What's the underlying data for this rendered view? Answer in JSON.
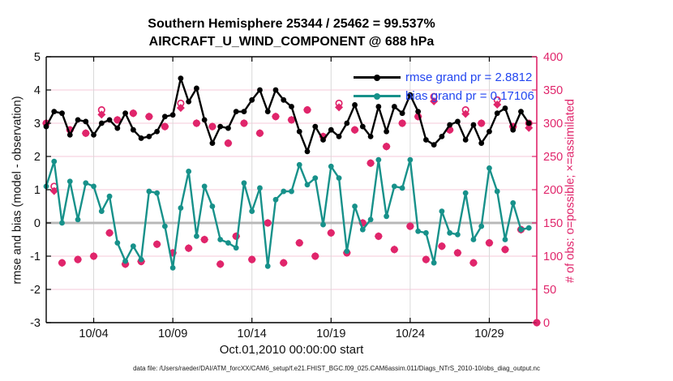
{
  "chart_data": {
    "type": "line",
    "title": "Southern Hemisphere 25344 / 25462 = 99.537%",
    "subtitle": "AIRCRAFT_U_WIND_COMPONENT @ 688 hPa",
    "xlabel": "Oct.01,2010 00:00:00 start",
    "ylabel_left": "rmse and bias (model - observation)",
    "ylabel_right": "# of obs: o=possible; ×=assimilated",
    "footer": "data file: /Users/raeder/DAI/ATM_forcXX/CAM6_setup/f.e21.FHIST_BGC.f09_025.CAM6assim.011/Diags_NTrS_2010-10/obs_diag_output.nc",
    "xlim_days": [
      0,
      31
    ],
    "xticks": [
      {
        "t": 3,
        "label": "10/04"
      },
      {
        "t": 8,
        "label": "10/09"
      },
      {
        "t": 13,
        "label": "10/14"
      },
      {
        "t": 18,
        "label": "10/19"
      },
      {
        "t": 23,
        "label": "10/24"
      },
      {
        "t": 28,
        "label": "10/29"
      }
    ],
    "ylim_left": [
      -3,
      5
    ],
    "yticks_left": [
      5,
      4,
      3,
      2,
      1,
      0,
      -1,
      -2,
      -3
    ],
    "ylim_right": [
      0,
      400
    ],
    "yticks_right": [
      400,
      350,
      300,
      250,
      200,
      150,
      100,
      50,
      0
    ],
    "time_step_hours": 12,
    "grid": {
      "h_color": "#f6c8d8",
      "v_color": "#d9d9d9",
      "zero_line_color": "#b8b8b8",
      "show": true
    },
    "legend": {
      "position": "top-right-inside",
      "text_color": "#2346f0",
      "entries": [
        {
          "label": "rmse grand pr = 2.8812",
          "color": "#000000"
        },
        {
          "label": "bias grand pr = 0.17106",
          "color": "#17918a"
        }
      ]
    },
    "series": [
      {
        "name": "rmse",
        "axis": "left",
        "color": "#000000",
        "marker": "circle",
        "t_start_days": 0,
        "t_step_days": 0.5,
        "values": [
          2.9,
          3.35,
          3.3,
          2.65,
          3.1,
          3.05,
          2.65,
          3.0,
          3.1,
          2.85,
          3.3,
          2.8,
          2.55,
          2.6,
          2.75,
          3.2,
          3.25,
          4.35,
          3.65,
          4.05,
          3.1,
          2.4,
          2.9,
          2.85,
          3.35,
          3.35,
          3.7,
          4.0,
          3.35,
          4.0,
          3.7,
          3.5,
          2.75,
          2.15,
          2.9,
          2.5,
          2.8,
          2.6,
          3.0,
          3.55,
          2.9,
          2.6,
          3.5,
          2.75,
          3.5,
          3.3,
          3.85,
          3.35,
          2.5,
          2.35,
          2.6,
          2.95,
          3.05,
          2.5,
          2.95,
          2.4,
          2.75,
          3.3,
          3.45,
          2.8,
          3.35,
          3.0
        ]
      },
      {
        "name": "bias",
        "axis": "left",
        "color": "#17918a",
        "marker": "circle",
        "t_start_days": 0,
        "t_step_days": 0.5,
        "values": [
          1.1,
          1.85,
          0.0,
          1.25,
          0.1,
          1.2,
          1.1,
          0.35,
          0.8,
          -0.6,
          -1.15,
          -0.7,
          -1.1,
          0.95,
          0.9,
          -0.1,
          -1.35,
          0.45,
          1.55,
          -0.4,
          1.1,
          0.5,
          -0.5,
          -0.6,
          -0.75,
          1.2,
          0.35,
          1.05,
          -1.3,
          0.7,
          0.95,
          0.95,
          1.75,
          1.15,
          1.35,
          -0.05,
          1.7,
          1.35,
          -0.85,
          0.5,
          -0.2,
          0.1,
          1.9,
          0.2,
          1.1,
          1.05,
          1.9,
          -0.25,
          -0.3,
          -1.2,
          0.35,
          -0.3,
          -0.35,
          0.9,
          -0.5,
          -0.1,
          1.65,
          0.95,
          -0.5,
          0.6,
          -0.2,
          -0.15
        ]
      }
    ],
    "obs_counts": {
      "axis": "right",
      "color": "#e0256b",
      "possible_marker": "o",
      "assimilated_marker": "x",
      "t_start_days": 0,
      "t_step_days": 0.5,
      "possible": [
        300,
        205,
        90,
        290,
        95,
        285,
        100,
        320,
        135,
        305,
        88,
        315,
        92,
        310,
        118,
        295,
        105,
        330,
        112,
        300,
        125,
        295,
        88,
        270,
        130,
        300,
        95,
        285,
        150,
        310,
        90,
        305,
        120,
        320,
        100,
        280,
        135,
        330,
        105,
        290,
        150,
        240,
        130,
        265,
        110,
        300,
        145,
        310,
        95,
        340,
        115,
        290,
        105,
        320,
        90,
        300,
        120,
        335,
        110,
        295,
        140,
        300,
        0
      ],
      "assimilated": [
        300,
        198,
        90,
        290,
        95,
        285,
        100,
        313,
        135,
        305,
        88,
        315,
        92,
        310,
        118,
        295,
        105,
        323,
        112,
        300,
        125,
        295,
        88,
        270,
        130,
        300,
        95,
        285,
        150,
        310,
        90,
        305,
        120,
        320,
        100,
        280,
        135,
        324,
        105,
        290,
        150,
        240,
        130,
        265,
        110,
        300,
        145,
        310,
        95,
        333,
        115,
        290,
        105,
        314,
        90,
        300,
        120,
        328,
        110,
        295,
        140,
        293,
        0
      ]
    }
  }
}
